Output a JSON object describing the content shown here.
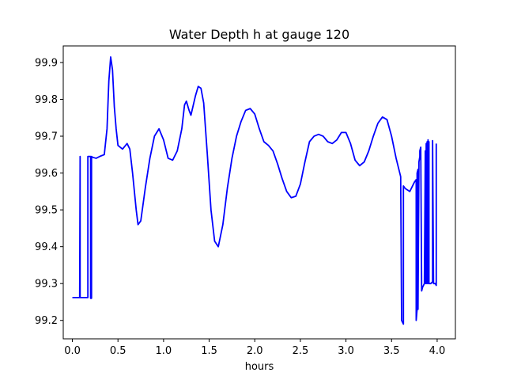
{
  "chart_data": {
    "type": "line",
    "title": "Water Depth h at gauge 120",
    "xlabel": "hours",
    "ylabel": "",
    "xlim": [
      -0.1,
      4.2
    ],
    "ylim": [
      99.15,
      99.945
    ],
    "xticks": [
      0.0,
      0.5,
      1.0,
      1.5,
      2.0,
      2.5,
      3.0,
      3.5,
      4.0
    ],
    "xtick_labels": [
      "0.0",
      "0.5",
      "1.0",
      "1.5",
      "2.0",
      "2.5",
      "3.0",
      "3.5",
      "4.0"
    ],
    "yticks": [
      99.2,
      99.3,
      99.4,
      99.5,
      99.6,
      99.7,
      99.8,
      99.9
    ],
    "ytick_labels": [
      "99.2",
      "99.3",
      "99.4",
      "99.5",
      "99.6",
      "99.7",
      "99.8",
      "99.9"
    ],
    "grid": false,
    "series": [
      {
        "color": "#0000ff",
        "x": [
          0.0,
          0.08,
          0.08,
          0.085,
          0.085,
          0.09,
          0.17,
          0.17,
          0.2,
          0.2,
          0.21,
          0.21,
          0.22,
          0.26,
          0.3,
          0.35,
          0.38,
          0.4,
          0.42,
          0.44,
          0.46,
          0.48,
          0.5,
          0.55,
          0.6,
          0.63,
          0.66,
          0.7,
          0.72,
          0.75,
          0.8,
          0.85,
          0.9,
          0.95,
          1.0,
          1.05,
          1.1,
          1.15,
          1.2,
          1.23,
          1.25,
          1.28,
          1.3,
          1.35,
          1.38,
          1.41,
          1.44,
          1.48,
          1.52,
          1.56,
          1.6,
          1.65,
          1.7,
          1.75,
          1.8,
          1.85,
          1.9,
          1.95,
          2.0,
          2.05,
          2.1,
          2.15,
          2.2,
          2.25,
          2.3,
          2.35,
          2.4,
          2.45,
          2.5,
          2.55,
          2.6,
          2.65,
          2.7,
          2.75,
          2.8,
          2.85,
          2.9,
          2.95,
          3.0,
          3.05,
          3.1,
          3.15,
          3.2,
          3.25,
          3.3,
          3.35,
          3.4,
          3.45,
          3.5,
          3.55,
          3.6,
          3.61,
          3.61,
          3.63,
          3.63,
          3.65,
          3.7,
          3.75,
          3.77,
          3.77,
          3.78,
          3.78,
          3.79,
          3.79,
          3.8,
          3.8,
          3.81,
          3.81,
          3.82,
          3.83,
          3.84,
          3.85,
          3.86,
          3.87,
          3.87,
          3.88,
          3.88,
          3.89,
          3.89,
          3.9,
          3.9,
          3.91,
          3.91,
          3.92,
          3.93,
          3.95,
          3.95,
          3.96,
          3.97,
          3.98,
          3.99,
          3.99
        ],
        "y": [
          99.262,
          99.262,
          99.262,
          99.645,
          99.262,
          99.262,
          99.262,
          99.645,
          99.645,
          99.26,
          99.26,
          99.645,
          99.643,
          99.64,
          99.645,
          99.65,
          99.72,
          99.85,
          99.915,
          99.88,
          99.78,
          99.72,
          99.675,
          99.665,
          99.68,
          99.665,
          99.6,
          99.5,
          99.46,
          99.47,
          99.56,
          99.64,
          99.7,
          99.72,
          99.69,
          99.64,
          99.635,
          99.66,
          99.72,
          99.785,
          99.795,
          99.77,
          99.757,
          99.81,
          99.835,
          99.83,
          99.79,
          99.65,
          99.5,
          99.415,
          99.4,
          99.46,
          99.56,
          99.64,
          99.7,
          99.74,
          99.77,
          99.775,
          99.76,
          99.72,
          99.685,
          99.675,
          99.66,
          99.625,
          99.585,
          99.55,
          99.533,
          99.537,
          99.57,
          99.63,
          99.685,
          99.7,
          99.705,
          99.7,
          99.685,
          99.68,
          99.69,
          99.71,
          99.71,
          99.68,
          99.635,
          99.62,
          99.63,
          99.66,
          99.7,
          99.735,
          99.752,
          99.745,
          99.7,
          99.64,
          99.59,
          99.21,
          99.2,
          99.19,
          99.565,
          99.558,
          99.55,
          99.575,
          99.582,
          99.2,
          99.23,
          99.6,
          99.61,
          99.23,
          99.62,
          99.63,
          99.645,
          99.66,
          99.67,
          99.28,
          99.29,
          99.295,
          99.3,
          99.66,
          99.3,
          99.68,
          99.3,
          99.685,
          99.3,
          99.69,
          99.3,
          99.685,
          99.3,
          99.3,
          99.3,
          99.305,
          99.688,
          99.3,
          99.3,
          99.3,
          99.295,
          99.68
        ]
      }
    ]
  }
}
